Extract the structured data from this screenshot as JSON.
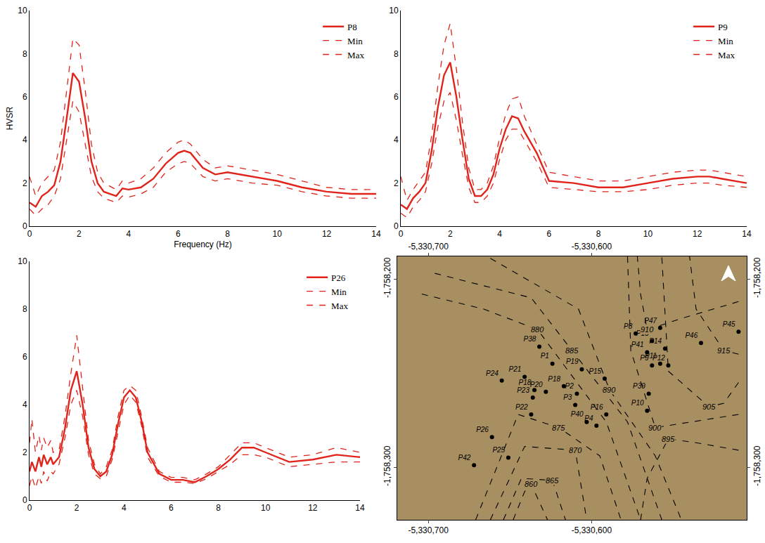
{
  "chart_data": [
    {
      "type": "line",
      "x_label": "Frequency (Hz)",
      "y_label": "HVSR",
      "legend": "upper right",
      "grid": false,
      "xlim": [
        0,
        14
      ],
      "xticks": [
        0,
        2,
        4,
        6,
        8,
        10,
        12,
        14
      ],
      "ylim": [
        0,
        10
      ],
      "yticks": [
        0,
        2,
        4,
        6,
        8,
        10
      ],
      "x": [
        0,
        0.25,
        0.5,
        0.75,
        1,
        1.25,
        1.5,
        1.75,
        2,
        2.25,
        2.5,
        2.75,
        3,
        3.5,
        3.75,
        4,
        4.5,
        5,
        5.5,
        6,
        6.25,
        6.5,
        7,
        7.5,
        8,
        9,
        10,
        11,
        12,
        13,
        14
      ],
      "series": [
        {
          "name": "P8",
          "color": "#e0241b",
          "line_style": "solid",
          "values": [
            1.1,
            0.9,
            1.4,
            1.6,
            1.9,
            3.0,
            5.0,
            7.1,
            6.7,
            5.0,
            3.0,
            2.0,
            1.6,
            1.4,
            1.75,
            1.7,
            1.8,
            2.2,
            2.9,
            3.4,
            3.5,
            3.4,
            2.7,
            2.4,
            2.5,
            2.3,
            2.1,
            1.8,
            1.6,
            1.5,
            1.5
          ]
        },
        {
          "name": "Min",
          "color": "#e0241b",
          "line_style": "dashed",
          "values": [
            0.8,
            0.5,
            0.8,
            1.0,
            1.4,
            2.2,
            4.0,
            5.8,
            5.3,
            3.8,
            2.3,
            1.6,
            1.3,
            1.1,
            1.4,
            1.35,
            1.5,
            1.8,
            2.5,
            2.9,
            3.0,
            2.9,
            2.3,
            2.1,
            2.2,
            2.0,
            1.9,
            1.6,
            1.4,
            1.3,
            1.3
          ]
        },
        {
          "name": "Max",
          "color": "#e0241b",
          "line_style": "dashed",
          "values": [
            2.3,
            1.4,
            2.0,
            2.3,
            2.6,
            3.9,
            6.2,
            8.7,
            8.4,
            6.3,
            3.8,
            2.5,
            2.0,
            1.7,
            2.1,
            2.0,
            2.2,
            2.7,
            3.4,
            3.9,
            4.0,
            3.8,
            3.1,
            2.7,
            2.8,
            2.6,
            2.4,
            2.1,
            1.8,
            1.7,
            1.7
          ]
        }
      ]
    },
    {
      "type": "line",
      "legend": "upper right",
      "grid": false,
      "xlim": [
        0,
        14
      ],
      "xticks": [
        0,
        2,
        4,
        6,
        8,
        10,
        12,
        14
      ],
      "ylim": [
        0,
        10
      ],
      "yticks": [
        0,
        2,
        4,
        6,
        8,
        10
      ],
      "x": [
        0,
        0.25,
        0.5,
        0.75,
        1,
        1.25,
        1.5,
        1.75,
        2,
        2.25,
        2.5,
        2.75,
        3,
        3.25,
        3.5,
        3.75,
        4,
        4.25,
        4.5,
        4.75,
        5,
        5.5,
        6,
        7,
        8,
        9,
        10,
        11,
        12,
        12.5,
        13,
        14
      ],
      "series": [
        {
          "name": "P9",
          "color": "#e0241b",
          "line_style": "solid",
          "values": [
            1.0,
            0.8,
            1.3,
            1.6,
            2.0,
            3.5,
            5.5,
            7.0,
            7.6,
            6.0,
            4.0,
            2.2,
            1.4,
            1.4,
            1.7,
            2.4,
            3.6,
            4.5,
            5.1,
            5.0,
            4.4,
            3.4,
            2.1,
            2.0,
            1.8,
            1.8,
            2.0,
            2.2,
            2.3,
            2.3,
            2.2,
            2.0
          ]
        },
        {
          "name": "Min",
          "color": "#e0241b",
          "line_style": "dashed",
          "values": [
            0.6,
            0.4,
            0.9,
            1.2,
            1.6,
            2.9,
            4.6,
            5.8,
            6.2,
            4.9,
            3.3,
            1.8,
            1.1,
            1.1,
            1.4,
            2.0,
            3.1,
            4.0,
            4.5,
            4.5,
            4.0,
            3.0,
            1.8,
            1.7,
            1.6,
            1.6,
            1.7,
            1.9,
            2.0,
            2.0,
            1.9,
            1.8
          ]
        },
        {
          "name": "Max",
          "color": "#e0241b",
          "line_style": "dashed",
          "values": [
            2.3,
            1.2,
            1.7,
            2.1,
            2.5,
            4.2,
            6.5,
            8.4,
            9.4,
            7.3,
            4.8,
            2.7,
            1.7,
            1.7,
            2.0,
            2.8,
            4.1,
            5.2,
            5.9,
            6.0,
            5.1,
            3.8,
            2.5,
            2.3,
            2.1,
            2.1,
            2.3,
            2.5,
            2.6,
            2.6,
            2.5,
            2.3
          ]
        }
      ]
    },
    {
      "type": "line",
      "legend": "upper right",
      "grid": false,
      "xlim": [
        0,
        14
      ],
      "xticks": [
        0,
        2,
        4,
        6,
        8,
        10,
        12,
        14
      ],
      "ylim": [
        0,
        10
      ],
      "yticks": [
        0,
        2,
        4,
        6,
        8,
        10
      ],
      "x": [
        0,
        0.1,
        0.25,
        0.4,
        0.5,
        0.6,
        0.75,
        0.9,
        1,
        1.25,
        1.5,
        1.75,
        2,
        2.25,
        2.5,
        2.75,
        3,
        3.25,
        3.5,
        3.75,
        4,
        4.25,
        4.5,
        4.75,
        5,
        5.5,
        6,
        6.5,
        7,
        7.5,
        8,
        8.5,
        9,
        9.5,
        10,
        11,
        12,
        13,
        14
      ],
      "series": [
        {
          "name": "P26",
          "color": "#e0241b",
          "line_style": "solid",
          "values": [
            1.2,
            1.6,
            1.2,
            1.8,
            1.4,
            1.9,
            1.5,
            1.8,
            1.5,
            1.8,
            3.0,
            4.6,
            5.4,
            4.0,
            2.2,
            1.3,
            1.0,
            1.2,
            1.9,
            3.2,
            4.3,
            4.6,
            4.3,
            3.3,
            2.0,
            1.1,
            0.85,
            0.85,
            0.75,
            1.0,
            1.3,
            1.7,
            2.2,
            2.2,
            2.0,
            1.6,
            1.7,
            1.9,
            1.8
          ]
        },
        {
          "name": "Min",
          "color": "#e0241b",
          "line_style": "dashed",
          "values": [
            0.6,
            1.0,
            0.5,
            1.0,
            0.7,
            1.2,
            0.8,
            1.2,
            1.1,
            1.5,
            2.6,
            4.0,
            4.6,
            3.5,
            1.9,
            1.1,
            0.9,
            1.0,
            1.7,
            2.9,
            4.0,
            4.4,
            4.1,
            3.1,
            1.8,
            1.0,
            0.75,
            0.75,
            0.7,
            0.9,
            1.2,
            1.5,
            1.9,
            1.9,
            1.8,
            1.4,
            1.5,
            1.6,
            1.6
          ]
        },
        {
          "name": "Max",
          "color": "#e0241b",
          "line_style": "dashed",
          "values": [
            2.4,
            3.4,
            2.0,
            2.7,
            2.1,
            2.6,
            2.2,
            2.5,
            2.0,
            2.1,
            3.5,
            5.3,
            6.9,
            4.7,
            2.5,
            1.5,
            1.1,
            1.4,
            2.1,
            3.5,
            4.6,
            4.8,
            4.6,
            3.5,
            2.2,
            1.2,
            0.95,
            0.95,
            0.85,
            1.1,
            1.4,
            1.9,
            2.4,
            2.4,
            2.2,
            1.8,
            1.9,
            2.2,
            2.0
          ]
        }
      ]
    },
    {
      "type": "scatter",
      "grid": false,
      "marker": "circle",
      "line_style": "dashed",
      "color": "#000000",
      "xlim": [
        -5330719,
        -5330505
      ],
      "xticks": [
        {
          "value": -5330700,
          "label": "-5,330,700"
        },
        {
          "value": -5330600,
          "label": "-5,330,600"
        }
      ],
      "ylim": [
        -1758328,
        -1758188
      ],
      "yticks": [
        {
          "value": -1758300,
          "label": "-1,758,300"
        },
        {
          "value": -1758200,
          "label": "-1,758,200"
        }
      ],
      "points": {
        "labels": [
          "P45",
          "P8",
          "P47",
          "P13",
          "P14",
          "P46",
          "P41",
          "P9",
          "P11",
          "P12",
          "P39",
          "P10",
          "P16",
          "P4",
          "P40",
          "P15",
          "P19",
          "P18",
          "P2",
          "P3",
          "P1",
          "P38",
          "P21",
          "P24",
          "P18",
          "P20",
          "P23",
          "P22",
          "P26",
          "P25",
          "P42"
        ],
        "x": [
          -5330510,
          -5330573,
          -5330558,
          -5330563,
          -5330555,
          -5330533,
          -5330566,
          -5330563,
          -5330558,
          -5330553,
          -5330565,
          -5330566,
          -5330591,
          -5330597,
          -5330603,
          -5330592,
          -5330606,
          -5330617,
          -5330609,
          -5330610,
          -5330624,
          -5330632,
          -5330641,
          -5330655,
          -5330635,
          -5330628,
          -5330636,
          -5330637,
          -5330661,
          -5330651,
          -5330672
        ],
        "y": [
          -1758228,
          -1758229,
          -1758226,
          -1758233,
          -1758237,
          -1758234,
          -1758239,
          -1758246,
          -1758245,
          -1758246,
          -1758261,
          -1758270,
          -1758272,
          -1758278,
          -1758276,
          -1758253,
          -1758248,
          -1758257,
          -1758261,
          -1758267,
          -1758245,
          -1758236,
          -1758252,
          -1758254,
          -1758259,
          -1758260,
          -1758263,
          -1758272,
          -1758284,
          -1758295,
          -1758299
        ]
      },
      "contours": [
        {
          "level": 860,
          "x": [
            -5330648,
            -5330641,
            -5330637,
            -5330627
          ],
          "y": [
            -1758328,
            -1758313,
            -1758309,
            -1758328
          ]
        },
        {
          "level": 865,
          "x": [
            -5330654,
            -5330643,
            -5330624,
            -5330616
          ],
          "y": [
            -1758328,
            -1758306,
            -1758307,
            -1758328
          ]
        },
        {
          "level": 870,
          "x": [
            -5330662,
            -5330641,
            -5330610,
            -5330603
          ],
          "y": [
            -1758328,
            -1758289,
            -1758291,
            -1758328
          ]
        },
        {
          "level": 875,
          "x": [
            -5330671,
            -5330645,
            -5330620,
            -5330595,
            -5330582
          ],
          "y": [
            -1758328,
            -1758272,
            -1758279,
            -1758294,
            -1758328
          ]
        },
        {
          "level": 880,
          "x": [
            -5330704,
            -5330666,
            -5330633,
            -5330591,
            -5330570
          ],
          "y": [
            -1758208,
            -1758216,
            -1758227,
            -1758276,
            -1758328
          ]
        },
        {
          "level": 885,
          "x": [
            -5330696,
            -5330637,
            -5330612,
            -5330578,
            -5330557
          ],
          "y": [
            -1758197,
            -1758210,
            -1758238,
            -1758276,
            -1758328
          ]
        },
        {
          "level": 890,
          "x": [
            -5330662,
            -5330608,
            -5330589,
            -5330561,
            -5330545
          ],
          "y": [
            -1758189,
            -1758216,
            -1758259,
            -1758294,
            -1758328
          ]
        },
        {
          "level": 895,
          "x": [
            -5330510,
            -5330536,
            -5330553,
            -5330566,
            -5330570
          ],
          "y": [
            -1758291,
            -1758287,
            -1758285,
            -1758306,
            -1758328
          ]
        },
        {
          "level": 900,
          "x": [
            -5330510,
            -5330540,
            -5330561,
            -5330576,
            -5330578
          ],
          "y": [
            -1758272,
            -1758276,
            -1758279,
            -1758238,
            -1758188
          ]
        },
        {
          "level": 905,
          "x": [
            -5330510,
            -5330519,
            -5330528,
            -5330553,
            -5330557
          ],
          "y": [
            -1758255,
            -1758266,
            -1758268,
            -1758249,
            -1758188
          ]
        },
        {
          "level": 910,
          "x": [
            -5330510,
            -5330545,
            -5330566,
            -5330570,
            -5330572
          ],
          "y": [
            -1758212,
            -1758221,
            -1758227,
            -1758208,
            -1758188
          ]
        },
        {
          "level": 915,
          "x": [
            -5330510,
            -5330515,
            -5330519,
            -5330536,
            -5330540
          ],
          "y": [
            -1758240,
            -1758239,
            -1758238,
            -1758216,
            -1758188
          ]
        }
      ]
    }
  ]
}
